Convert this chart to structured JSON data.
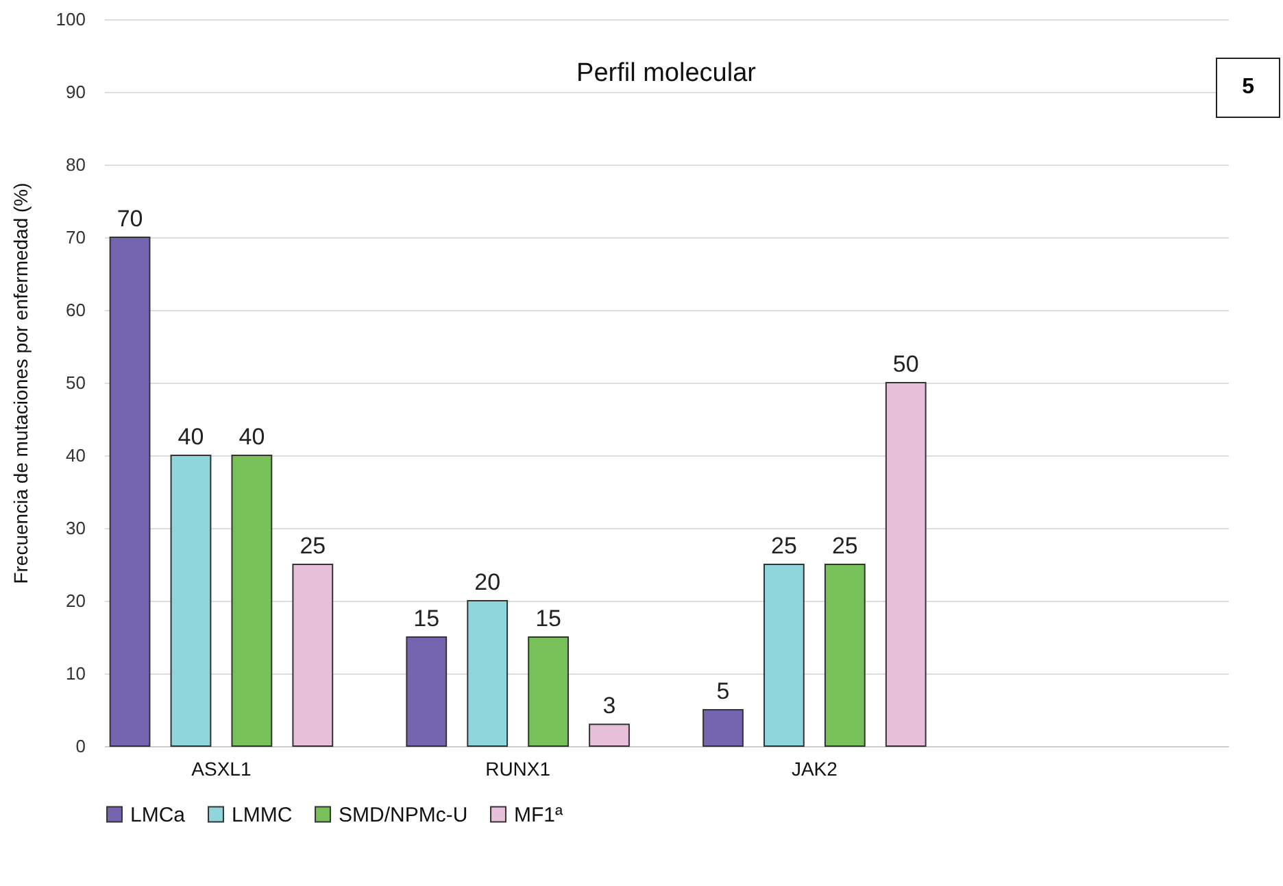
{
  "chart_data": {
    "type": "bar",
    "title": "Perfil molecular",
    "ylabel": "Frecuencia de mutaciones por enfermedad  (%)",
    "categories": [
      "ASXL1",
      "RUNX1",
      "JAK2",
      null
    ],
    "series": [
      {
        "name": "LMCa",
        "color": "#7565b0",
        "values": [
          70,
          15,
          5,
          null
        ]
      },
      {
        "name": "LMMC",
        "color": "#8fd6dc",
        "values": [
          40,
          20,
          25,
          null
        ]
      },
      {
        "name": "SMD/NPMc-U",
        "color": "#77c158",
        "values": [
          40,
          15,
          25,
          null
        ]
      },
      {
        "name": "MF1ª",
        "color": "#e8bfd9",
        "values": [
          25,
          3,
          50,
          null
        ]
      }
    ],
    "ylim": [
      0,
      100
    ],
    "yticks": [
      0,
      10,
      20,
      30,
      40,
      50,
      60,
      70,
      80,
      90,
      100
    ],
    "grid": "y",
    "legend": "bottom",
    "data_labels": true,
    "annotations": [
      "5"
    ]
  }
}
